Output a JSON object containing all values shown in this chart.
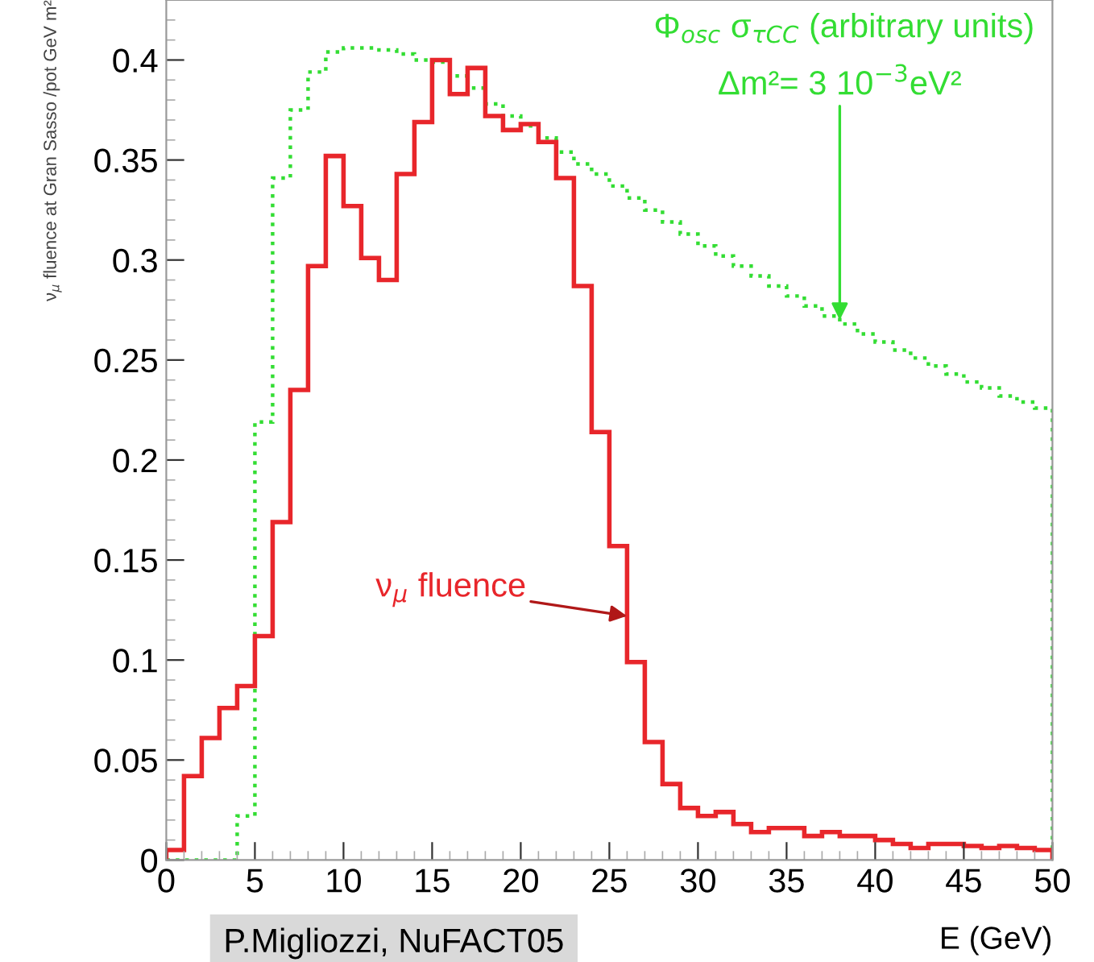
{
  "chart_data": {
    "type": "histogram",
    "ylabel": "ν$_{μ}$ fluence at Gran Sasso /pot GeV m²",
    "xlabel": "E (GeV)",
    "bins": [
      0,
      1,
      2,
      3,
      4,
      5,
      6,
      7,
      8,
      9,
      10,
      11,
      12,
      13,
      14,
      15,
      16,
      17,
      18,
      19,
      20,
      21,
      22,
      23,
      24,
      25,
      26,
      27,
      28,
      29,
      30,
      31,
      32,
      33,
      34,
      35,
      36,
      37,
      38,
      39,
      40,
      41,
      42,
      43,
      44,
      45,
      46,
      47,
      48,
      49,
      50
    ],
    "series": [
      {
        "name": "Φ$_{osc}$ σ$_{τCC}$ (arbitrary units)",
        "color": "#33dd33",
        "line_style": "dotted",
        "values": [
          0,
          0,
          0,
          0,
          0.022,
          0.219,
          0.341,
          0.375,
          0.394,
          0.404,
          0.406,
          0.406,
          0.405,
          0.403,
          0.4,
          0.399,
          0.392,
          0.386,
          0.378,
          0.372,
          0.367,
          0.361,
          0.354,
          0.348,
          0.343,
          0.337,
          0.331,
          0.325,
          0.319,
          0.313,
          0.307,
          0.302,
          0.297,
          0.292,
          0.287,
          0.282,
          0.277,
          0.272,
          0.268,
          0.263,
          0.259,
          0.255,
          0.251,
          0.247,
          0.243,
          0.239,
          0.236,
          0.232,
          0.229,
          0.226
        ]
      },
      {
        "color": "#e8262b",
        "line_style": "solid",
        "values": [
          0.005,
          0.042,
          0.061,
          0.076,
          0.087,
          0.112,
          0.169,
          0.235,
          0.297,
          0.352,
          0.327,
          0.301,
          0.29,
          0.343,
          0.369,
          0.4,
          0.383,
          0.396,
          0.372,
          0.365,
          0.368,
          0.359,
          0.341,
          0.287,
          0.214,
          0.157,
          0.099,
          0.059,
          0.038,
          0.026,
          0.022,
          0.024,
          0.018,
          0.014,
          0.016,
          0.016,
          0.012,
          0.014,
          0.012,
          0.012,
          0.01,
          0.008,
          0.006,
          0.008,
          0.008,
          0.007,
          0.006,
          0.007,
          0.006,
          0.005
        ]
      }
    ],
    "xlim": [
      0,
      50
    ],
    "xticks": [
      0,
      5,
      10,
      15,
      20,
      25,
      30,
      35,
      40,
      45,
      50
    ],
    "ylim": [
      0,
      0.43
    ],
    "yticks": [
      0,
      0.05,
      0.1,
      0.15,
      0.2,
      0.25,
      0.3,
      0.35,
      0.4
    ],
    "grid": false,
    "legend": "top right",
    "annotations": [
      {
        "text": "ν$_{μ}$ fluence",
        "x": 26,
        "y": 0.122
      },
      {
        "text": "Δm²= 3 10$^{−3}$eV²",
        "x": 38,
        "y": 0.27
      },
      "P.Migliozzi, NuFACT05"
    ]
  }
}
